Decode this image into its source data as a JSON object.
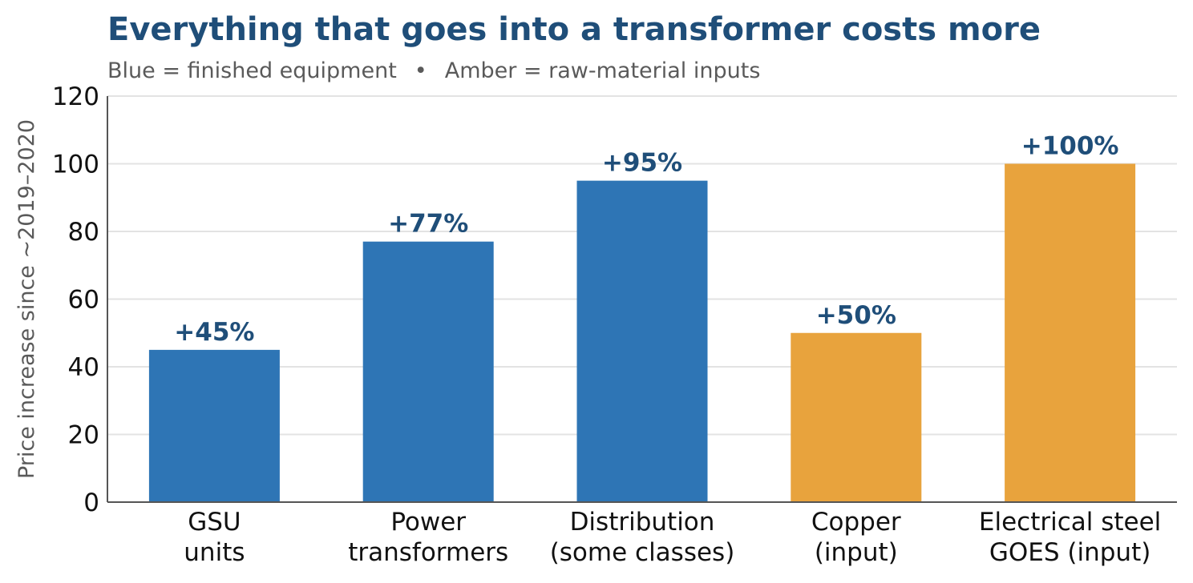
{
  "chart_data": {
    "type": "bar",
    "title": "Everything that goes into a transformer costs more",
    "subtitle": {
      "part1": "Blue = finished equipment",
      "separator": "•",
      "part2": "Amber = raw-material inputs"
    },
    "ylabel": "Price increase since ~2019–2020",
    "xlabel": "",
    "ylim": [
      0,
      120
    ],
    "yticks": [
      0,
      20,
      40,
      60,
      80,
      100,
      120
    ],
    "grid": "horizontal",
    "categories": [
      [
        "GSU",
        "units"
      ],
      [
        "Power",
        "transformers"
      ],
      [
        "Distribution",
        "(some classes)"
      ],
      [
        "Copper",
        "(input)"
      ],
      [
        "Electrical steel",
        "GOES (input)"
      ]
    ],
    "values": [
      45,
      77,
      95,
      50,
      100
    ],
    "value_labels": [
      "+45%",
      "+77%",
      "+95%",
      "+50%",
      "+100%"
    ],
    "groups": [
      "equipment",
      "equipment",
      "equipment",
      "input",
      "input"
    ],
    "colors": {
      "equipment": "#2e75b5",
      "input": "#e8a33d",
      "value_label": "#1f4e79",
      "title": "#1f4e79",
      "grid": "#e3e3e3",
      "axis": "#555555"
    }
  }
}
